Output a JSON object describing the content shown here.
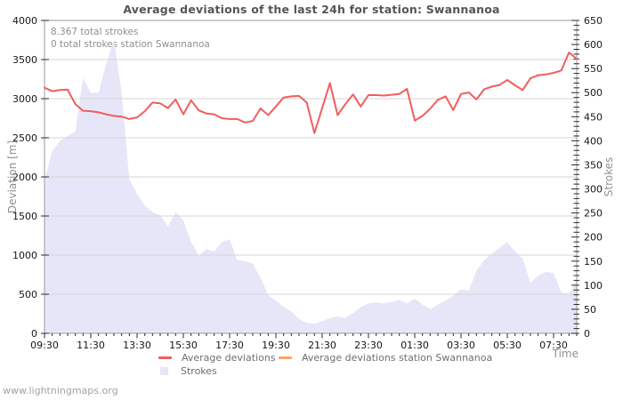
{
  "page": {
    "title": "Average deviations of the last 24h for station: Swannanoa",
    "annotation_line1": "8.367 total strokes",
    "annotation_line2": "0 total strokes station Swannanoa",
    "footer": "www.lightningmaps.org"
  },
  "legend": {
    "avg_deviations": "Average deviations",
    "avg_deviations_station": "Average deviations station Swannanoa",
    "strokes": "Strokes"
  },
  "colors": {
    "deviation_line": "#f15e5e",
    "station_line": "#fba465",
    "strokes_fill": "#e6e6f8",
    "grid": "#d6d6d6",
    "frame": "#9a9a9a",
    "tick": "#2a2a2a"
  },
  "chart_data": {
    "type": "line",
    "title": "Average deviations of the last 24h for station: Swannanoa",
    "xlabel": "Time",
    "ylabel_left": "Deviation [m]",
    "ylabel_right": "Strokes",
    "y_left_range": [
      0,
      4000
    ],
    "y_left_tick_step": 500,
    "y_right_range": [
      0,
      650
    ],
    "y_right_tick_step": 50,
    "y_right_minor_step": 10,
    "grid": "horizontal",
    "legend_position": "bottom",
    "x_tick_labels": [
      "09:30",
      "11:30",
      "13:30",
      "15:30",
      "17:30",
      "19:30",
      "21:30",
      "23:30",
      "01:30",
      "03:30",
      "05:30",
      "07:30"
    ],
    "x": [
      "09:30",
      "09:50",
      "10:10",
      "10:30",
      "10:50",
      "11:10",
      "11:30",
      "11:50",
      "12:10",
      "12:30",
      "12:50",
      "13:10",
      "13:30",
      "13:50",
      "14:10",
      "14:30",
      "14:50",
      "15:10",
      "15:30",
      "15:50",
      "16:10",
      "16:30",
      "16:50",
      "17:10",
      "17:30",
      "17:50",
      "18:10",
      "18:30",
      "18:50",
      "19:10",
      "19:30",
      "19:50",
      "20:10",
      "20:30",
      "20:50",
      "21:10",
      "21:30",
      "21:50",
      "22:10",
      "22:30",
      "22:50",
      "23:10",
      "23:30",
      "23:50",
      "00:10",
      "00:30",
      "00:50",
      "01:10",
      "01:30",
      "01:50",
      "02:10",
      "02:30",
      "02:50",
      "03:10",
      "03:30",
      "03:50",
      "04:10",
      "04:30",
      "04:50",
      "05:10",
      "05:30",
      "05:50",
      "06:10",
      "06:30",
      "06:50",
      "07:10",
      "07:30",
      "07:50",
      "08:10",
      "08:30"
    ],
    "series": [
      {
        "name": "Average deviations",
        "type": "line",
        "axis": "left",
        "color": "#f15e5e",
        "values": [
          3140,
          3095,
          3110,
          3115,
          2930,
          2845,
          2840,
          2825,
          2800,
          2780,
          2770,
          2740,
          2760,
          2840,
          2950,
          2940,
          2880,
          2990,
          2800,
          2980,
          2850,
          2810,
          2800,
          2750,
          2740,
          2740,
          2695,
          2715,
          2875,
          2790,
          2900,
          3015,
          3030,
          3035,
          2950,
          2560,
          2880,
          3200,
          2790,
          2930,
          3055,
          2900,
          3045,
          3045,
          3040,
          3050,
          3060,
          3125,
          2720,
          2780,
          2870,
          2985,
          3030,
          2855,
          3060,
          3080,
          2990,
          3120,
          3155,
          3175,
          3240,
          3170,
          3110,
          3260,
          3300,
          3310,
          3330,
          3360,
          3590,
          3510
        ]
      },
      {
        "name": "Average deviations station Swannanoa",
        "type": "line",
        "axis": "left",
        "color": "#fba465",
        "values": []
      },
      {
        "name": "Strokes",
        "type": "area",
        "axis": "right",
        "color": "#e6e6f8",
        "values": [
          320,
          378,
          400,
          410,
          420,
          530,
          500,
          500,
          560,
          610,
          500,
          320,
          290,
          265,
          252,
          245,
          222,
          252,
          235,
          190,
          162,
          175,
          170,
          190,
          195,
          152,
          150,
          145,
          115,
          80,
          68,
          55,
          45,
          30,
          22,
          20,
          25,
          32,
          35,
          32,
          42,
          55,
          62,
          64,
          62,
          65,
          70,
          62,
          72,
          60,
          50,
          60,
          68,
          78,
          92,
          88,
          130,
          152,
          165,
          178,
          190,
          170,
          155,
          105,
          120,
          128,
          125,
          85,
          82,
          110
        ]
      }
    ]
  }
}
